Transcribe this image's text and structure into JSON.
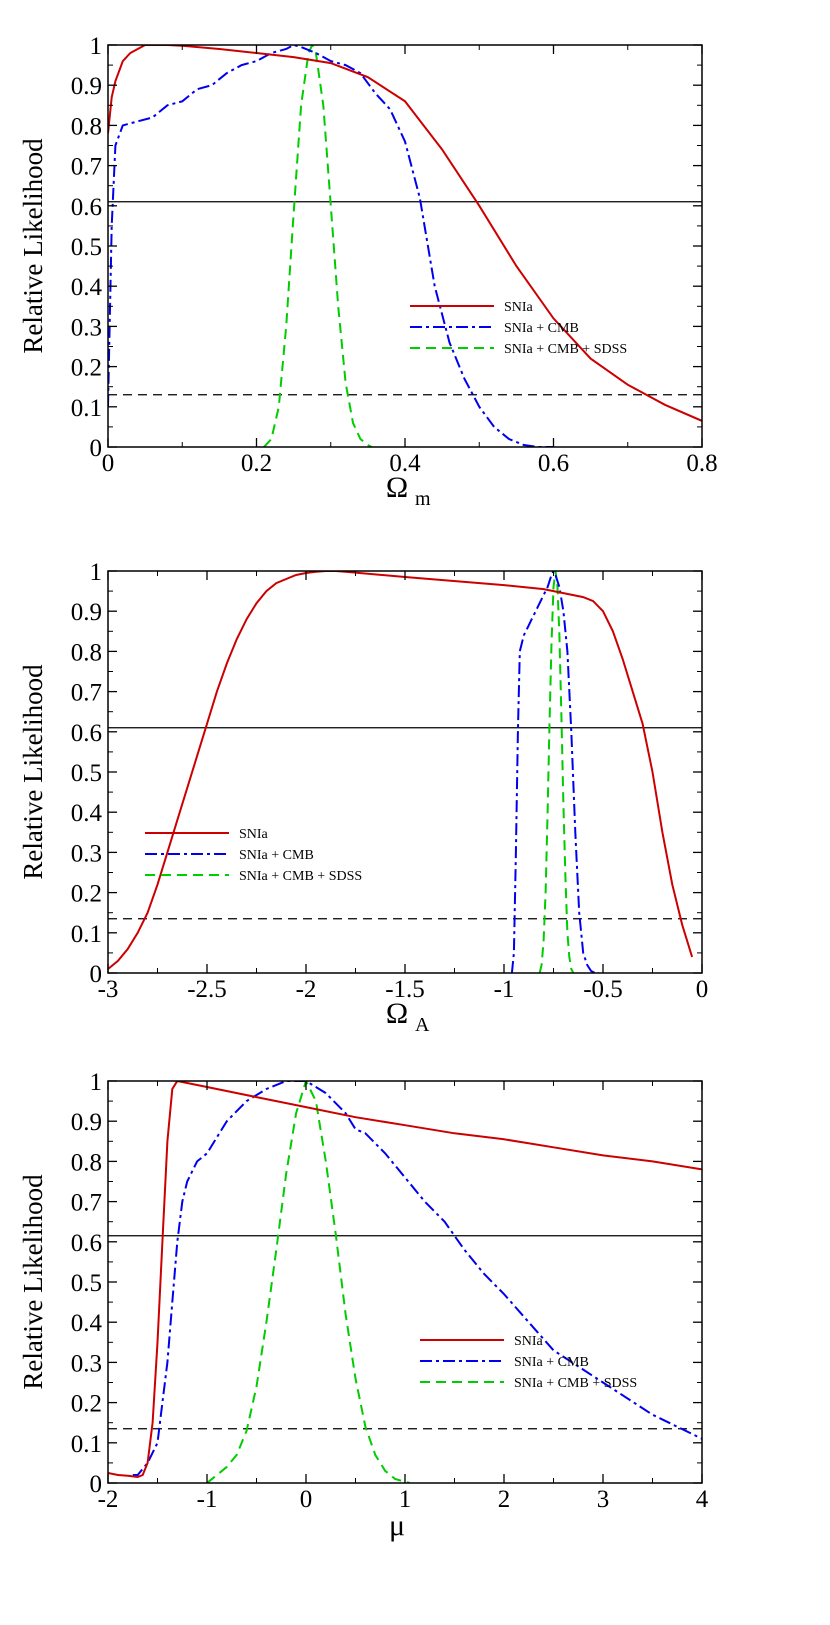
{
  "colors": {
    "SNIa": "#cc0000",
    "SNIa + CMB": "#0000ee",
    "SNIa + CMB + SDSS": "#00cc00",
    "reference": "#000000"
  },
  "chart_data": [
    {
      "type": "line",
      "xlabel": "Ω",
      "xlabel_sub": "m",
      "ylabel": "Relative Likelihood",
      "xlim": [
        0,
        0.8
      ],
      "ylim": [
        0,
        1
      ],
      "xticks": [
        0,
        0.2,
        0.4,
        0.6,
        0.8
      ],
      "xtick_labels": [
        "0",
        "0.2",
        "0.4",
        "0.6",
        "0.8"
      ],
      "yticks": [
        0,
        0.1,
        0.2,
        0.3,
        0.4,
        0.5,
        0.6,
        0.7,
        0.8,
        0.9,
        1
      ],
      "ytick_labels": [
        "0",
        "0.1",
        "0.2",
        "0.3",
        "0.4",
        "0.5",
        "0.6",
        "0.7",
        "0.8",
        "0.9",
        "1"
      ],
      "hlines": [
        {
          "y": 0.61,
          "style": "solid"
        },
        {
          "y": 0.13,
          "style": "dashed"
        }
      ],
      "legend": "middle-right",
      "series": [
        {
          "name": "SNIa",
          "style": "solid",
          "x": [
            0,
            0.005,
            0.01,
            0.02,
            0.03,
            0.04,
            0.05,
            0.06,
            0.08,
            0.1,
            0.15,
            0.2,
            0.25,
            0.3,
            0.35,
            0.4,
            0.45,
            0.5,
            0.55,
            0.6,
            0.65,
            0.7,
            0.75,
            0.8
          ],
          "y": [
            0.78,
            0.87,
            0.91,
            0.96,
            0.98,
            0.99,
            1.0,
            1.0,
            1.0,
            0.998,
            0.99,
            0.98,
            0.97,
            0.955,
            0.92,
            0.86,
            0.74,
            0.6,
            0.45,
            0.32,
            0.22,
            0.155,
            0.105,
            0.065
          ]
        },
        {
          "name": "SNIa + CMB",
          "style": "dashdot",
          "x": [
            0,
            0.005,
            0.01,
            0.02,
            0.04,
            0.06,
            0.08,
            0.1,
            0.12,
            0.14,
            0.16,
            0.18,
            0.2,
            0.22,
            0.24,
            0.25,
            0.26,
            0.28,
            0.3,
            0.32,
            0.34,
            0.36,
            0.38,
            0.4,
            0.42,
            0.44,
            0.46,
            0.48,
            0.5,
            0.52,
            0.54,
            0.56,
            0.58,
            0.6
          ],
          "y": [
            0.1,
            0.55,
            0.75,
            0.8,
            0.81,
            0.82,
            0.85,
            0.86,
            0.89,
            0.9,
            0.93,
            0.95,
            0.96,
            0.98,
            0.99,
            1.0,
            0.995,
            0.98,
            0.96,
            0.95,
            0.93,
            0.88,
            0.84,
            0.76,
            0.62,
            0.4,
            0.26,
            0.17,
            0.1,
            0.05,
            0.02,
            0.005,
            0.0,
            0.0
          ]
        },
        {
          "name": "SNIa + CMB + SDSS",
          "style": "dashed",
          "x": [
            0.21,
            0.22,
            0.23,
            0.24,
            0.25,
            0.26,
            0.27,
            0.275,
            0.28,
            0.29,
            0.3,
            0.31,
            0.32,
            0.33,
            0.34,
            0.35,
            0.355
          ],
          "y": [
            0.0,
            0.02,
            0.1,
            0.3,
            0.58,
            0.85,
            0.98,
            1.0,
            0.98,
            0.85,
            0.6,
            0.35,
            0.16,
            0.06,
            0.02,
            0.005,
            0.0
          ]
        }
      ]
    },
    {
      "type": "line",
      "xlabel": "Ω",
      "xlabel_sub": "A",
      "ylabel": "Relative Likelihood",
      "xlim": [
        -3,
        0
      ],
      "ylim": [
        0,
        1
      ],
      "xticks": [
        -3,
        -2.5,
        -2,
        -1.5,
        -1,
        -0.5,
        0
      ],
      "xtick_labels": [
        "-3",
        "-2.5",
        "-2",
        "-1.5",
        "-1",
        "-0.5",
        "0"
      ],
      "yticks": [
        0,
        0.1,
        0.2,
        0.3,
        0.4,
        0.5,
        0.6,
        0.7,
        0.8,
        0.9,
        1
      ],
      "ytick_labels": [
        "0",
        "0.1",
        "0.2",
        "0.3",
        "0.4",
        "0.5",
        "0.6",
        "0.7",
        "0.8",
        "0.9",
        "1"
      ],
      "hlines": [
        {
          "y": 0.61,
          "style": "solid"
        },
        {
          "y": 0.135,
          "style": "dashed"
        }
      ],
      "legend": "middle-left",
      "series": [
        {
          "name": "SNIa",
          "style": "solid",
          "x": [
            -3,
            -2.95,
            -2.9,
            -2.85,
            -2.8,
            -2.75,
            -2.7,
            -2.65,
            -2.6,
            -2.55,
            -2.5,
            -2.45,
            -2.4,
            -2.35,
            -2.3,
            -2.25,
            -2.2,
            -2.15,
            -2.1,
            -2.05,
            -2.0,
            -1.95,
            -1.9,
            -1.85,
            -1.8,
            -1.5,
            -1.0,
            -0.8,
            -0.7,
            -0.6,
            -0.55,
            -0.5,
            -0.45,
            -0.4,
            -0.35,
            -0.3,
            -0.25,
            -0.2,
            -0.15,
            -0.1,
            -0.05
          ],
          "y": [
            0.01,
            0.03,
            0.06,
            0.1,
            0.15,
            0.22,
            0.3,
            0.38,
            0.46,
            0.54,
            0.62,
            0.7,
            0.77,
            0.83,
            0.88,
            0.92,
            0.95,
            0.97,
            0.98,
            0.99,
            0.995,
            0.998,
            1.0,
            1.0,
            0.998,
            0.985,
            0.965,
            0.955,
            0.945,
            0.935,
            0.925,
            0.9,
            0.85,
            0.78,
            0.7,
            0.62,
            0.5,
            0.35,
            0.22,
            0.12,
            0.04
          ]
        },
        {
          "name": "SNIa + CMB",
          "style": "dashdot",
          "x": [
            -0.96,
            -0.95,
            -0.94,
            -0.93,
            -0.92,
            -0.9,
            -0.88,
            -0.86,
            -0.84,
            -0.82,
            -0.8,
            -0.78,
            -0.76,
            -0.75,
            -0.74,
            -0.72,
            -0.7,
            -0.68,
            -0.66,
            -0.64,
            -0.62,
            -0.6,
            -0.58,
            -0.56,
            -0.54,
            -0.52
          ],
          "y": [
            0.0,
            0.05,
            0.3,
            0.6,
            0.8,
            0.84,
            0.86,
            0.88,
            0.9,
            0.92,
            0.94,
            0.96,
            0.99,
            1.0,
            0.99,
            0.96,
            0.9,
            0.8,
            0.6,
            0.35,
            0.15,
            0.05,
            0.02,
            0.005,
            0.0,
            0.0
          ]
        },
        {
          "name": "SNIa + CMB + SDSS",
          "style": "dashed",
          "x": [
            -0.82,
            -0.81,
            -0.8,
            -0.79,
            -0.78,
            -0.77,
            -0.76,
            -0.75,
            -0.74,
            -0.73,
            -0.72,
            -0.71,
            -0.7,
            -0.69,
            -0.68,
            -0.67,
            -0.66,
            -0.65
          ],
          "y": [
            0.0,
            0.02,
            0.08,
            0.2,
            0.4,
            0.62,
            0.82,
            0.96,
            1.0,
            0.96,
            0.84,
            0.64,
            0.42,
            0.24,
            0.1,
            0.04,
            0.01,
            0.0
          ]
        }
      ]
    },
    {
      "type": "line",
      "xlabel": "μ",
      "xlabel_sub": "",
      "ylabel": "Relative Likelihood",
      "xlim": [
        -2,
        4
      ],
      "ylim": [
        0,
        1
      ],
      "xticks": [
        -2,
        -1,
        0,
        1,
        2,
        3,
        4
      ],
      "xtick_labels": [
        "-2",
        "-1",
        "0",
        "1",
        "2",
        "3",
        "4"
      ],
      "yticks": [
        0,
        0.1,
        0.2,
        0.3,
        0.4,
        0.5,
        0.6,
        0.7,
        0.8,
        0.9,
        1
      ],
      "ytick_labels": [
        "0",
        "0.1",
        "0.2",
        "0.3",
        "0.4",
        "0.5",
        "0.6",
        "0.7",
        "0.8",
        "0.9",
        "1"
      ],
      "hlines": [
        {
          "y": 0.615,
          "style": "solid"
        },
        {
          "y": 0.135,
          "style": "dashed"
        }
      ],
      "legend": "middle-right",
      "series": [
        {
          "name": "SNIa",
          "style": "solid",
          "x": [
            -2,
            -1.9,
            -1.8,
            -1.7,
            -1.65,
            -1.6,
            -1.55,
            -1.5,
            -1.45,
            -1.4,
            -1.35,
            -1.3,
            -1.2,
            -1.0,
            -0.5,
            0,
            0.5,
            1.0,
            1.5,
            2.0,
            2.5,
            3.0,
            3.5,
            4.0
          ],
          "y": [
            0.025,
            0.02,
            0.018,
            0.015,
            0.02,
            0.05,
            0.15,
            0.35,
            0.6,
            0.85,
            0.98,
            1.0,
            0.995,
            0.985,
            0.96,
            0.935,
            0.91,
            0.89,
            0.87,
            0.855,
            0.835,
            0.815,
            0.8,
            0.78
          ]
        },
        {
          "name": "SNIa + CMB",
          "style": "dashdot",
          "x": [
            -1.75,
            -1.7,
            -1.6,
            -1.5,
            -1.45,
            -1.4,
            -1.35,
            -1.3,
            -1.25,
            -1.2,
            -1.1,
            -1.0,
            -0.9,
            -0.8,
            -0.6,
            -0.4,
            -0.2,
            0,
            0.2,
            0.4,
            0.5,
            0.6,
            0.8,
            1.0,
            1.2,
            1.4,
            1.6,
            1.8,
            2.0,
            2.5,
            3.0,
            3.5,
            4.0
          ],
          "y": [
            0.02,
            0.02,
            0.05,
            0.1,
            0.2,
            0.3,
            0.45,
            0.6,
            0.7,
            0.75,
            0.8,
            0.82,
            0.86,
            0.9,
            0.95,
            0.98,
            1.0,
            1.0,
            0.97,
            0.92,
            0.88,
            0.87,
            0.82,
            0.76,
            0.7,
            0.65,
            0.58,
            0.52,
            0.47,
            0.33,
            0.25,
            0.17,
            0.11
          ]
        },
        {
          "name": "SNIa + CMB + SDSS",
          "style": "dashed",
          "x": [
            -1,
            -0.9,
            -0.8,
            -0.7,
            -0.6,
            -0.5,
            -0.4,
            -0.3,
            -0.2,
            -0.1,
            0,
            0.1,
            0.2,
            0.3,
            0.4,
            0.5,
            0.6,
            0.7,
            0.8,
            0.9,
            1.0,
            1.05
          ],
          "y": [
            0.0,
            0.02,
            0.04,
            0.07,
            0.13,
            0.24,
            0.4,
            0.58,
            0.77,
            0.92,
            1.0,
            0.95,
            0.8,
            0.62,
            0.42,
            0.26,
            0.14,
            0.07,
            0.03,
            0.01,
            0.003,
            0.0
          ]
        }
      ]
    }
  ]
}
